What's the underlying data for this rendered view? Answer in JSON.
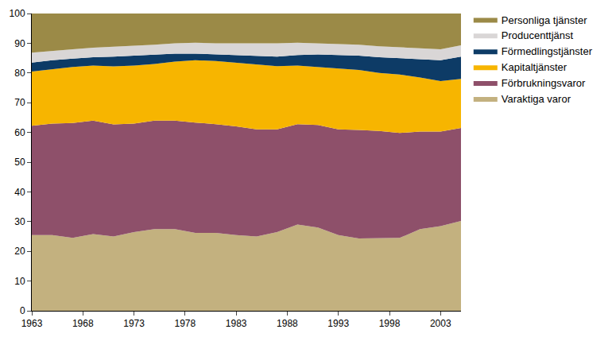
{
  "chart_data": {
    "type": "area",
    "stacked": true,
    "grid": false,
    "legend": "top right",
    "x": [
      1963,
      1965,
      1967,
      1969,
      1971,
      1973,
      1975,
      1977,
      1979,
      1981,
      1983,
      1985,
      1987,
      1989,
      1991,
      1993,
      1995,
      1997,
      1999,
      2001,
      2003,
      2005
    ],
    "xlim": [
      1963,
      2005
    ],
    "xticks": [
      1963,
      1968,
      1973,
      1978,
      1983,
      1988,
      1993,
      1998,
      2003
    ],
    "ylim": [
      0,
      100
    ],
    "yticks": [
      0,
      10,
      20,
      30,
      40,
      50,
      60,
      70,
      80,
      90,
      100
    ],
    "series": [
      {
        "name": "Varaktiga varor",
        "color": "#c3b17f",
        "values": [
          25.5,
          25.5,
          24.5,
          25.8,
          25,
          26.5,
          27.5,
          27.5,
          26.2,
          26.2,
          25.5,
          25,
          26.5,
          29,
          28,
          25.5,
          24.3,
          24.3,
          24.5,
          27.5,
          28.5,
          30.2
        ]
      },
      {
        "name": "Förbrukningsvaror",
        "color": "#8e506a",
        "values": [
          36.7,
          37.5,
          38.7,
          38.2,
          37.7,
          36.5,
          36.5,
          36.5,
          37.1,
          36.6,
          36.5,
          36,
          34.5,
          33.8,
          34.5,
          35.5,
          36.5,
          36.2,
          35.3,
          32.8,
          31.8,
          31.3
        ]
      },
      {
        "name": "Kapitaltjänster",
        "color": "#f7b500",
        "values": [
          18.3,
          18.3,
          18.8,
          18.5,
          19.5,
          19.5,
          19,
          19.8,
          21,
          21.2,
          21.5,
          21.8,
          21.3,
          19.7,
          19.5,
          20.3,
          20.2,
          19.5,
          19.7,
          18.2,
          17,
          16.5
        ]
      },
      {
        "name": "Förmedlingstjänster",
        "color": "#0d3b66",
        "values": [
          3,
          3,
          2.8,
          2.8,
          3.3,
          3.3,
          3,
          2.7,
          2.2,
          2.3,
          2.5,
          3,
          3.2,
          3.5,
          4.2,
          4.7,
          4.8,
          5.3,
          5.5,
          6,
          7,
          7.5
        ]
      },
      {
        "name": "Producenttjänst",
        "color": "#d9d6d6",
        "values": [
          3.3,
          3.2,
          3.2,
          3.2,
          3.3,
          3.2,
          3.5,
          3.5,
          3.7,
          3.7,
          4,
          4,
          4.5,
          4.2,
          3.8,
          3.8,
          3.7,
          3.7,
          3.7,
          3.8,
          3.7,
          3.8
        ]
      },
      {
        "name": "Personliga tjänster",
        "color": "#9b8a47",
        "values": [
          13.2,
          12.5,
          12,
          11.5,
          11.2,
          11,
          10.5,
          10,
          9.8,
          10,
          10,
          10.2,
          10,
          9.8,
          10,
          10.2,
          10.5,
          11,
          11.3,
          11.7,
          12,
          10.7
        ]
      }
    ]
  }
}
